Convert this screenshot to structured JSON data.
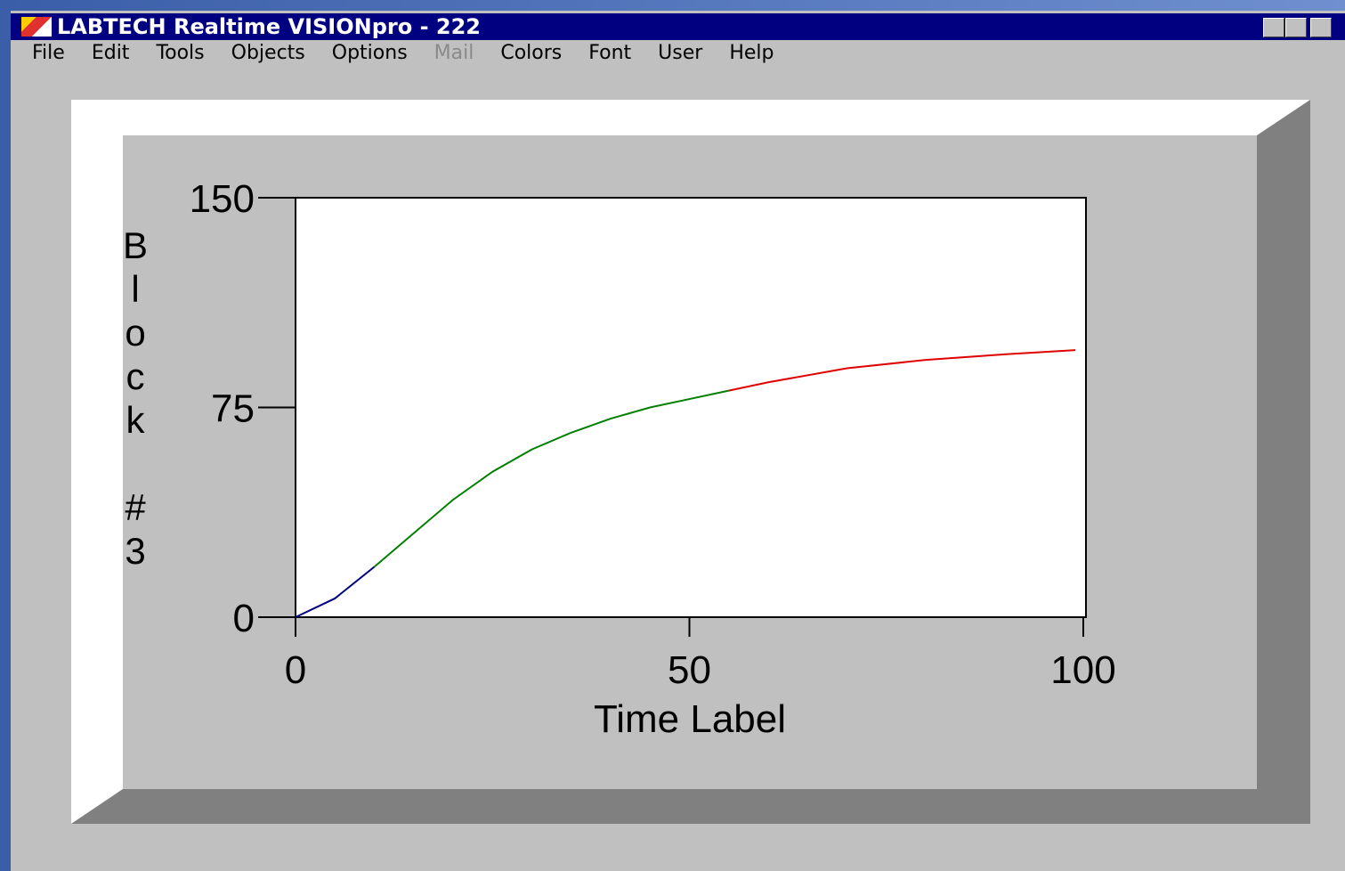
{
  "window": {
    "title": "LABTECH Realtime VISIONpro - 222",
    "menu": [
      {
        "label": "File"
      },
      {
        "label": "Edit"
      },
      {
        "label": "Tools"
      },
      {
        "label": "Objects"
      },
      {
        "label": "Options"
      },
      {
        "label": "Mail",
        "enabled": false
      },
      {
        "label": "Colors"
      },
      {
        "label": "Font"
      },
      {
        "label": "User"
      },
      {
        "label": "Help"
      }
    ]
  },
  "chart_data": {
    "type": "line",
    "xlabel": "Time Label",
    "ylabel": "Block #3",
    "xlim": [
      0,
      100
    ],
    "ylim": [
      0,
      150
    ],
    "xticks": [
      0,
      50,
      100
    ],
    "yticks": [
      0,
      75,
      150
    ],
    "series": [
      {
        "color": "#000080",
        "x": [
          0,
          5,
          10
        ],
        "values": [
          0,
          6.7,
          18
        ]
      },
      {
        "color": "#008000",
        "x": [
          10,
          15,
          20,
          25,
          30,
          35,
          40,
          45,
          50,
          55
        ],
        "values": [
          18,
          30,
          42,
          52,
          60,
          66,
          71,
          75,
          78,
          81
        ]
      },
      {
        "color": "#e00000",
        "x": [
          55,
          60,
          70,
          80,
          90,
          99
        ],
        "values": [
          81,
          84,
          89,
          92,
          94,
          95.5
        ]
      }
    ]
  }
}
